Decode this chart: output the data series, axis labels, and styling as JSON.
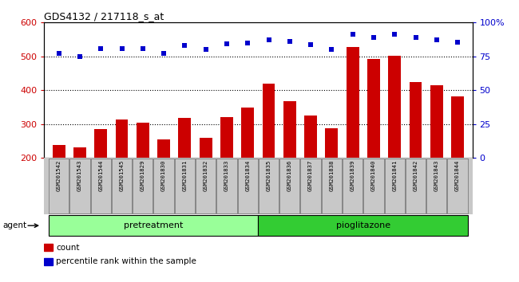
{
  "title": "GDS4132 / 217118_s_at",
  "categories": [
    "GSM201542",
    "GSM201543",
    "GSM201544",
    "GSM201545",
    "GSM201829",
    "GSM201830",
    "GSM201831",
    "GSM201832",
    "GSM201833",
    "GSM201834",
    "GSM201835",
    "GSM201836",
    "GSM201837",
    "GSM201838",
    "GSM201839",
    "GSM201840",
    "GSM201841",
    "GSM201842",
    "GSM201843",
    "GSM201844"
  ],
  "bar_values": [
    238,
    230,
    285,
    313,
    303,
    254,
    318,
    260,
    320,
    348,
    420,
    368,
    325,
    288,
    527,
    492,
    503,
    425,
    415,
    383
  ],
  "dot_values": [
    508,
    500,
    522,
    524,
    524,
    510,
    532,
    521,
    537,
    539,
    550,
    545,
    534,
    521,
    566,
    556,
    566,
    556,
    549,
    543
  ],
  "bar_color": "#cc0000",
  "dot_color": "#0000cc",
  "ylim_left": [
    200,
    600
  ],
  "ylim_right": [
    0,
    100
  ],
  "yticks_left": [
    200,
    300,
    400,
    500,
    600
  ],
  "yticks_right": [
    0,
    25,
    50,
    75,
    100
  ],
  "ytick_labels_right": [
    "0",
    "25",
    "50",
    "75",
    "100%"
  ],
  "grid_values": [
    300,
    400,
    500
  ],
  "pretreatment_count": 10,
  "group_labels": [
    "pretreatment",
    "pioglitazone"
  ],
  "group_color_pre": "#99ff99",
  "group_color_pio": "#33cc33",
  "legend_count_label": "count",
  "legend_pct_label": "percentile rank within the sample",
  "agent_label": "agent",
  "xtick_bg_color": "#c8c8c8",
  "plot_bg_color": "#ffffff"
}
